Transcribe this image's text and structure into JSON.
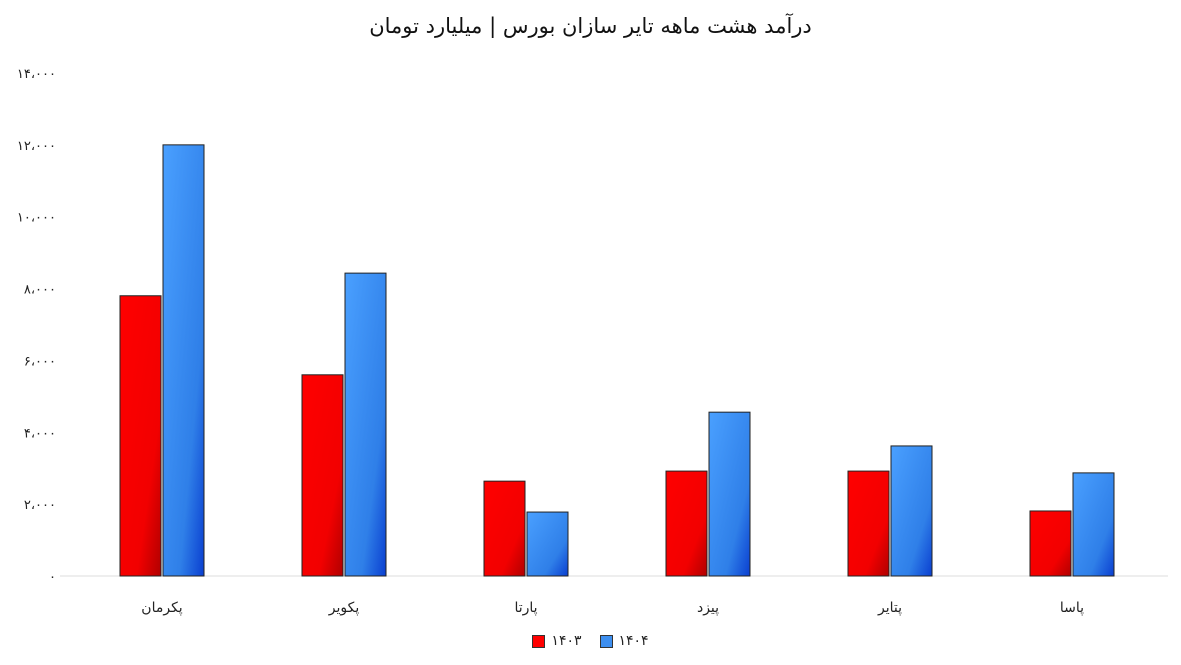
{
  "chart_data": {
    "type": "bar",
    "title": "درآمد هشت ماهه تایر سازان بورس | میلیارد تومان",
    "categories": [
      "پکرمان",
      "پکویر",
      "پارتا",
      "پیزد",
      "پتایر",
      "پاسا"
    ],
    "series": [
      {
        "name": "۱۴۰۳",
        "color": "#ff0000",
        "values": [
          7800,
          5600,
          2640,
          2920,
          2920,
          1810
        ]
      },
      {
        "name": "۱۴۰۴",
        "color": "#3d8ff0",
        "values": [
          12000,
          8430,
          1780,
          4560,
          3620,
          2870
        ]
      }
    ],
    "ylim": [
      0,
      14000
    ],
    "yticks": [
      0,
      2000,
      4000,
      6000,
      8000,
      10000,
      12000,
      14000
    ],
    "ytick_labels": [
      "۰",
      "۲،۰۰۰",
      "۴،۰۰۰",
      "۶،۰۰۰",
      "۸،۰۰۰",
      "۱۰،۰۰۰",
      "۱۲،۰۰۰",
      "۱۴،۰۰۰"
    ],
    "xlabel": "",
    "ylabel": "",
    "grid": false,
    "legend": "bottom"
  }
}
